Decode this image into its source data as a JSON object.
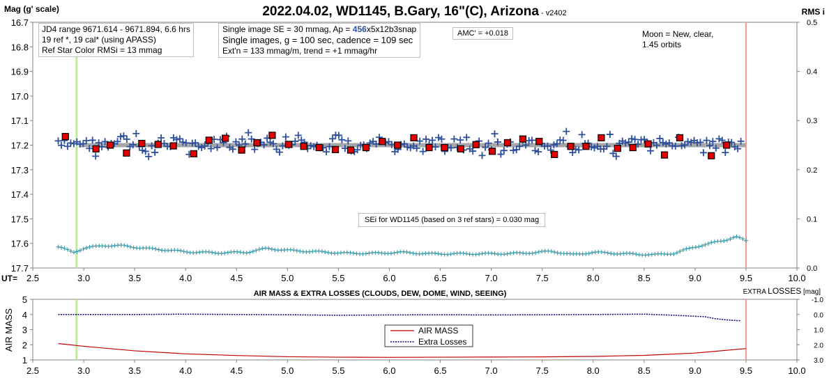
{
  "header": {
    "title": "2022.04.02, WD1145, B.Gary, 16\"(C), Arizona",
    "version": " - v2402",
    "ylabel_left": "Mag (g' scale)",
    "ylabel_right": "RMS i",
    "ut_label": "UT="
  },
  "notes": {
    "box1": [
      "JD4 range 9671.614 - 9671.894, 6.6 hrs",
      "19 ref *, 19 cal* (using APASS)",
      "Ref Star Color RMSi = 13 mmag"
    ],
    "box2_pre": "Single image SE = 30 mmag, Ap = ",
    "box2_ap": "456",
    "box2_post": "x5x12b3snap",
    "box2_line2": "Single images, g = 100 sec, cadence = 109 sec",
    "box2_line3": "Ext'n = 133 mmag/m, trend = +1 mmag/hr",
    "amc": "AMC' = +0.018",
    "moon": [
      "Moon = New, clear,",
      "1.45 orbits"
    ],
    "sei": "SEi for WD1145 (based on 3 ref stars) = 0.030 mag"
  },
  "chart_data": [
    {
      "type": "scatter",
      "name": "light-curve",
      "x_ticks": [
        "2.5",
        "3.0",
        "3.5",
        "4.0",
        "4.5",
        "5.0",
        "5.5",
        "6.0",
        "6.5",
        "7.0",
        "7.5",
        "8.0",
        "8.5",
        "9.0",
        "9.5",
        "10.0"
      ],
      "y_ticks": [
        "16.7",
        "16.8",
        "16.9",
        "17.0",
        "17.1",
        "17.2",
        "17.3",
        "17.4",
        "17.5",
        "17.6",
        "17.7"
      ],
      "y2_ticks": [
        "0.5",
        "0.4",
        "0.3",
        "0.2",
        "0.1",
        "0.0"
      ],
      "xlim": [
        2.5,
        10.0
      ],
      "ylim": [
        17.7,
        16.7
      ],
      "y2lim": [
        0.0,
        0.5
      ],
      "green_line_x": 2.93,
      "red_line_x": 9.5,
      "model_line": {
        "x": [
          2.95,
          9.5
        ],
        "y": [
          17.2,
          17.2
        ]
      },
      "binned": {
        "x": [
          2.82,
          3.12,
          3.26,
          3.42,
          3.57,
          3.73,
          3.88,
          4.08,
          4.23,
          4.39,
          4.55,
          4.7,
          4.85,
          5.01,
          5.16,
          5.31,
          5.47,
          5.62,
          5.77,
          5.93,
          6.08,
          6.24,
          6.39,
          6.54,
          6.7,
          6.85,
          7.01,
          7.16,
          7.31,
          7.47,
          7.62,
          7.78,
          7.93,
          8.08,
          8.24,
          8.39,
          8.54,
          8.7,
          8.85,
          9.16,
          9.31
        ],
        "y": [
          17.165,
          17.215,
          17.2,
          17.232,
          17.193,
          17.197,
          17.203,
          17.235,
          17.18,
          17.172,
          17.22,
          17.19,
          17.16,
          17.197,
          17.205,
          17.21,
          17.218,
          17.22,
          17.21,
          17.185,
          17.2,
          17.17,
          17.21,
          17.21,
          17.215,
          17.198,
          17.225,
          17.19,
          17.175,
          17.185,
          17.238,
          17.205,
          17.205,
          17.17,
          17.213,
          17.21,
          17.195,
          17.24,
          17.17,
          17.243,
          17.2
        ]
      },
      "raw_x_range": [
        2.75,
        9.45
      ],
      "raw_count": 220,
      "raw_mean": 17.2,
      "raw_sd": 0.03,
      "rms_x_range": [
        2.75,
        9.5
      ],
      "rms_count": 220,
      "rms_points": {
        "x": [
          2.75,
          2.9,
          3.0,
          3.2,
          3.4,
          3.6,
          3.8,
          4.0,
          4.3,
          4.6,
          4.8,
          5.0,
          5.3,
          5.6,
          5.9,
          6.1,
          6.4,
          6.7,
          7.0,
          7.3,
          7.6,
          7.8,
          8.0,
          8.3,
          8.6,
          8.8,
          9.0,
          9.15,
          9.3,
          9.4,
          9.5
        ],
        "y": [
          0.043,
          0.032,
          0.04,
          0.046,
          0.045,
          0.04,
          0.037,
          0.033,
          0.031,
          0.032,
          0.04,
          0.036,
          0.033,
          0.03,
          0.03,
          0.032,
          0.029,
          0.029,
          0.029,
          0.03,
          0.034,
          0.027,
          0.032,
          0.029,
          0.027,
          0.03,
          0.043,
          0.05,
          0.057,
          0.064,
          0.055
        ]
      }
    },
    {
      "type": "line",
      "name": "air-mass",
      "title": "AIR MASS & EXTRA LOSSES (CLOUDS, DEW, DOME, WIND, SEEING)",
      "ylabel": "AIR MASS",
      "y2label_pre": "EXTRA ",
      "y2label_big": "LOSSES",
      "y2label_post": " [mag]",
      "x_ticks": [
        "2.5",
        "3.0",
        "3.5",
        "4.0",
        "4.5",
        "5.0",
        "5.5",
        "6.0",
        "6.5",
        "7.0",
        "7.5",
        "8.0",
        "8.5",
        "9.0",
        "9.5",
        "10.0"
      ],
      "y_ticks": [
        "5",
        "4",
        "3",
        "2",
        "1"
      ],
      "y2_ticks": [
        "-1.0",
        "0.0",
        "1.0",
        "2.0",
        "3.0"
      ],
      "xlim": [
        2.5,
        10.0
      ],
      "ylim": [
        1,
        5
      ],
      "y2lim": [
        -1.0,
        3.0
      ],
      "green_line_x": 2.93,
      "red_line_x": 9.5,
      "legend": [
        "AIR MASS",
        "Extra Losses"
      ],
      "series": [
        {
          "name": "AIR MASS",
          "color": "#c00000",
          "x": [
            2.75,
            3.0,
            3.5,
            4.0,
            4.5,
            5.0,
            5.5,
            6.0,
            6.5,
            7.0,
            7.5,
            8.0,
            8.5,
            9.0,
            9.5
          ],
          "y": [
            2.08,
            1.9,
            1.6,
            1.4,
            1.29,
            1.21,
            1.18,
            1.17,
            1.18,
            1.19,
            1.2,
            1.23,
            1.3,
            1.45,
            1.75
          ]
        },
        {
          "name": "Extra Losses",
          "color": "#00007f",
          "x": [
            2.75,
            3.0,
            3.5,
            4.0,
            4.5,
            5.0,
            5.5,
            6.0,
            6.5,
            7.0,
            7.5,
            8.0,
            8.5,
            8.8,
            9.0,
            9.1,
            9.2,
            9.3,
            9.45
          ],
          "y": [
            0.0,
            0.0,
            0.0,
            -0.02,
            0.0,
            0.02,
            0.05,
            0.03,
            0.02,
            0.03,
            0.02,
            0.0,
            -0.02,
            0.05,
            0.12,
            0.15,
            0.28,
            0.35,
            0.42
          ]
        }
      ]
    }
  ]
}
